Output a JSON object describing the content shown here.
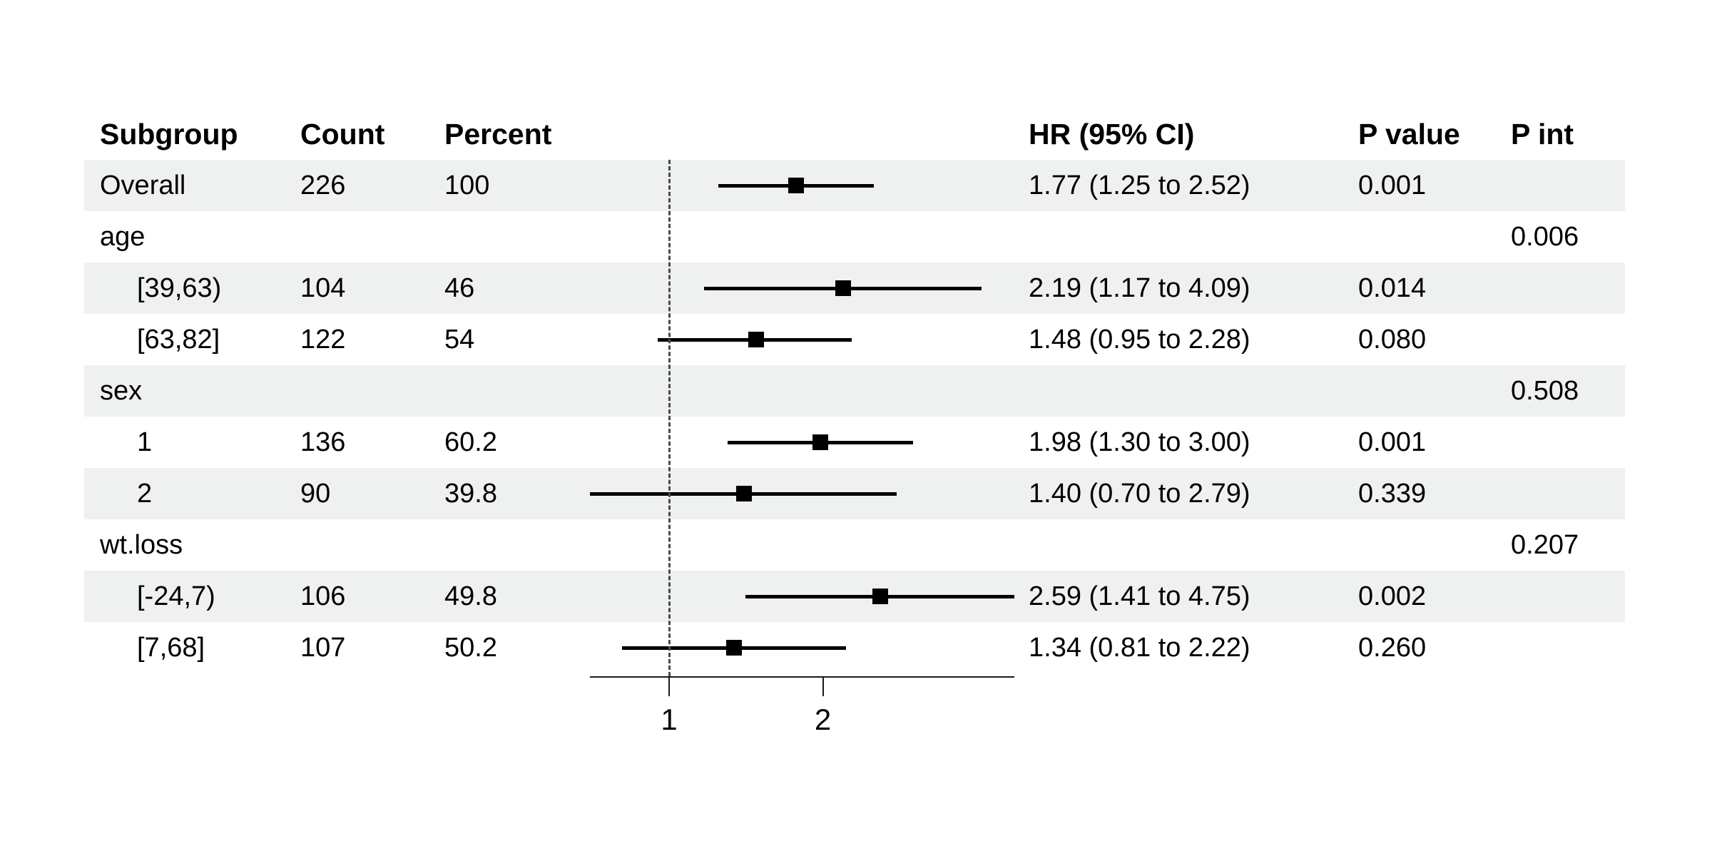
{
  "columns": {
    "subgroup": "Subgroup",
    "count": "Count",
    "percent": "Percent",
    "hr_ci": "HR (95% CI)",
    "p_value": "P value",
    "p_int": "P int"
  },
  "chart_data": {
    "type": "forest",
    "scale": "log2",
    "x_axis": {
      "ticks": [
        "1",
        "2"
      ],
      "tick_values": [
        1,
        2
      ],
      "ref_line": 1,
      "min": 0.7,
      "max": 4.75
    },
    "colors": {
      "band": "#eef1f0",
      "line": "#000000",
      "marker": "#000000",
      "ref_line": "#4a4a4a",
      "text": "#000000"
    },
    "rows": [
      {
        "subgroup": "Overall",
        "indent": false,
        "group_header": false,
        "shaded": true,
        "count": "226",
        "percent": "100",
        "hr": 1.77,
        "low": 1.25,
        "high": 2.52,
        "hr_ci_text": "1.77 (1.25 to 2.52)",
        "p_value": "0.001",
        "p_int": ""
      },
      {
        "subgroup": "age",
        "indent": false,
        "group_header": true,
        "shaded": false,
        "count": "",
        "percent": "",
        "hr": null,
        "low": null,
        "high": null,
        "hr_ci_text": "",
        "p_value": "",
        "p_int": "0.006"
      },
      {
        "subgroup": "[39,63)",
        "indent": true,
        "group_header": false,
        "shaded": true,
        "count": "104",
        "percent": "46",
        "hr": 2.19,
        "low": 1.17,
        "high": 4.09,
        "hr_ci_text": "2.19 (1.17 to 4.09)",
        "p_value": "0.014",
        "p_int": ""
      },
      {
        "subgroup": "[63,82]",
        "indent": true,
        "group_header": false,
        "shaded": false,
        "count": "122",
        "percent": "54",
        "hr": 1.48,
        "low": 0.95,
        "high": 2.28,
        "hr_ci_text": "1.48 (0.95 to 2.28)",
        "p_value": "0.080",
        "p_int": ""
      },
      {
        "subgroup": "sex",
        "indent": false,
        "group_header": true,
        "shaded": true,
        "count": "",
        "percent": "",
        "hr": null,
        "low": null,
        "high": null,
        "hr_ci_text": "",
        "p_value": "",
        "p_int": "0.508"
      },
      {
        "subgroup": "1",
        "indent": true,
        "group_header": false,
        "shaded": false,
        "count": "136",
        "percent": "60.2",
        "hr": 1.98,
        "low": 1.3,
        "high": 3.0,
        "hr_ci_text": "1.98 (1.30 to 3.00)",
        "p_value": "0.001",
        "p_int": ""
      },
      {
        "subgroup": "2",
        "indent": true,
        "group_header": false,
        "shaded": true,
        "count": "90",
        "percent": "39.8",
        "hr": 1.4,
        "low": 0.7,
        "high": 2.79,
        "hr_ci_text": "1.40 (0.70 to 2.79)",
        "p_value": "0.339",
        "p_int": ""
      },
      {
        "subgroup": "wt.loss",
        "indent": false,
        "group_header": true,
        "shaded": false,
        "count": "",
        "percent": "",
        "hr": null,
        "low": null,
        "high": null,
        "hr_ci_text": "",
        "p_value": "",
        "p_int": "0.207"
      },
      {
        "subgroup": "[-24,7)",
        "indent": true,
        "group_header": false,
        "shaded": true,
        "count": "106",
        "percent": "49.8",
        "hr": 2.59,
        "low": 1.41,
        "high": 4.75,
        "hr_ci_text": "2.59 (1.41 to 4.75)",
        "p_value": "0.002",
        "p_int": ""
      },
      {
        "subgroup": "[7,68]",
        "indent": true,
        "group_header": false,
        "shaded": false,
        "count": "107",
        "percent": "50.2",
        "hr": 1.34,
        "low": 0.81,
        "high": 2.22,
        "hr_ci_text": "1.34 (0.81 to 2.22)",
        "p_value": "0.260",
        "p_int": ""
      }
    ]
  }
}
